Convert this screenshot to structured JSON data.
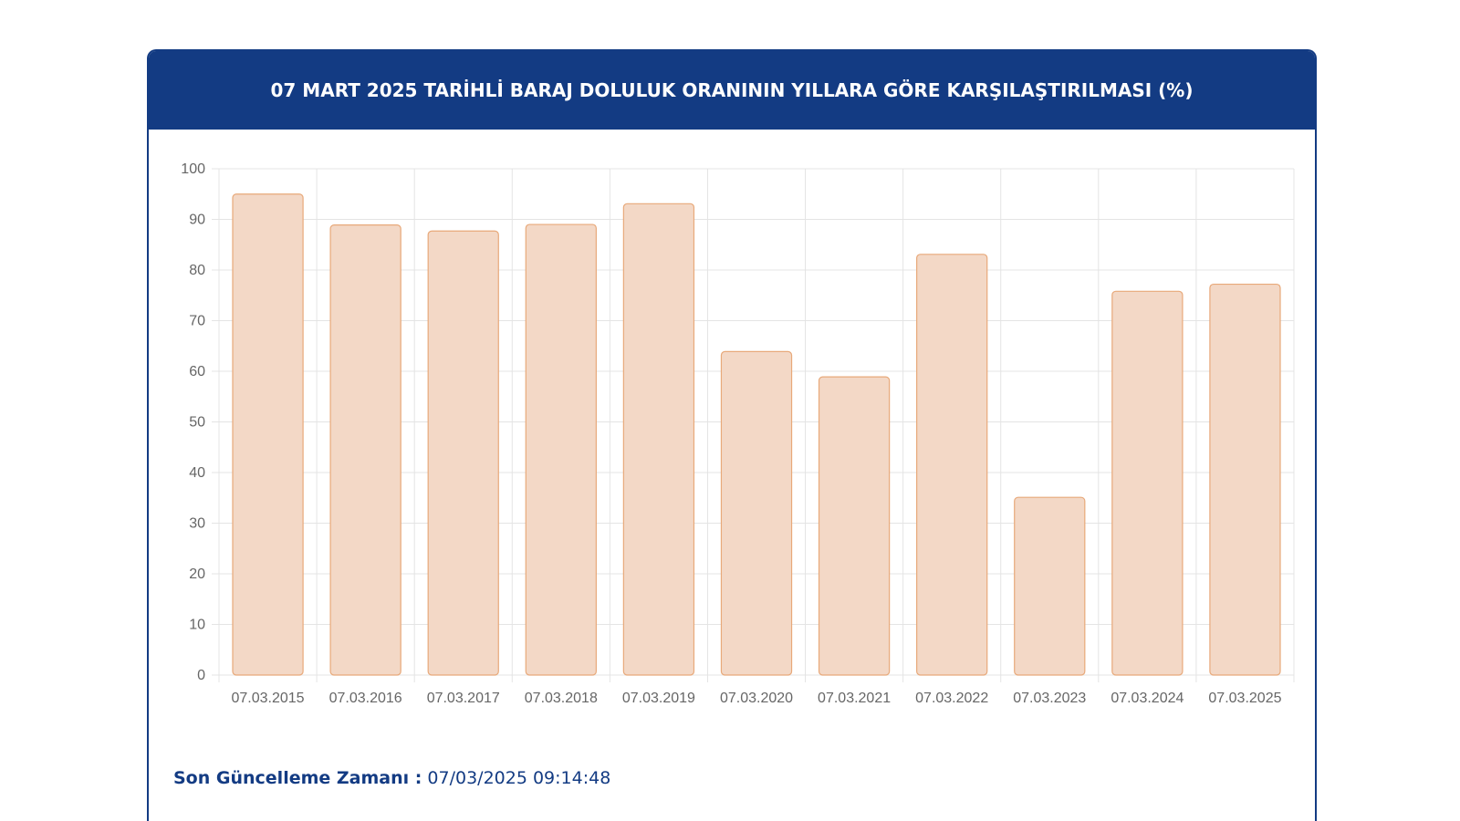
{
  "header": {
    "title": "07 MART 2025 TARİHLİ BARAJ DOLULUK ORANININ YILLARA GÖRE KARŞILAŞTIRILMASI (%)"
  },
  "footer": {
    "label": "Son Güncelleme Zamanı :",
    "value": "07/03/2025 09:14:48"
  },
  "colors": {
    "header_bg": "#133b83",
    "bar_fill": "#f3d8c6",
    "bar_stroke": "#e8a97a",
    "grid": "#e4e4e4"
  },
  "chart_data": {
    "type": "bar",
    "categories": [
      "07.03.2015",
      "07.03.2016",
      "07.03.2017",
      "07.03.2018",
      "07.03.2019",
      "07.03.2020",
      "07.03.2021",
      "07.03.2022",
      "07.03.2023",
      "07.03.2024",
      "07.03.2025"
    ],
    "values": [
      95.0,
      88.9,
      87.7,
      89.0,
      93.1,
      63.9,
      58.9,
      83.1,
      35.1,
      75.8,
      77.2
    ],
    "yticks": [
      0,
      10,
      20,
      30,
      40,
      50,
      60,
      70,
      80,
      90,
      100
    ],
    "ylim": [
      0,
      100
    ],
    "grid": true,
    "legend": "none"
  }
}
